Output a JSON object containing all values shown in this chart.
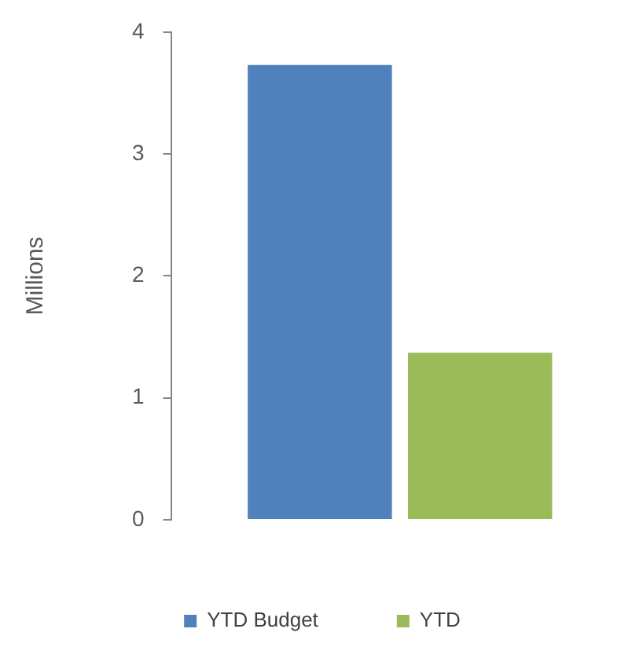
{
  "chart_data": {
    "type": "bar",
    "ylabel": "Millions",
    "categories": [
      null
    ],
    "series": [
      {
        "name": "YTD Budget",
        "color": "#4f81bd",
        "values": [
          3.73
        ]
      },
      {
        "name": "YTD",
        "color": "#9bbb59",
        "values": [
          1.37
        ]
      }
    ],
    "ylim": [
      0,
      4
    ],
    "yticks": [
      0,
      1,
      2,
      3,
      4
    ],
    "grid": false,
    "legend": "bottom"
  }
}
